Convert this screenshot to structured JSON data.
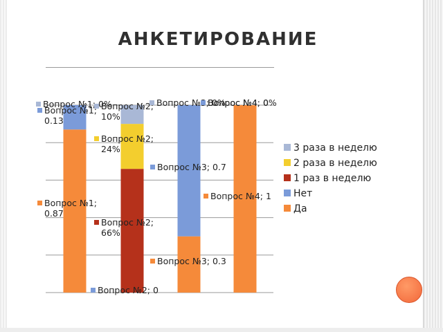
{
  "title": "АНКЕТИРОВАНИЕ",
  "chart_data": {
    "type": "bar",
    "stacked": true,
    "categories": [
      "Вопрос №1",
      "Вопрос №2",
      "Вопрос №3",
      "Вопрос №4"
    ],
    "ylim": [
      0,
      1
    ],
    "grid": true,
    "legend_position": "right",
    "series": [
      {
        "name": "Да",
        "color": "#f58a3a",
        "values": [
          0.87,
          null,
          0.3,
          1
        ]
      },
      {
        "name": "Нет",
        "color": "#7b9bd9",
        "values": [
          0.13,
          0,
          0.7,
          0
        ]
      },
      {
        "name": "1 раз в неделю",
        "color": "#b5311b",
        "values": [
          null,
          0.66,
          null,
          null
        ]
      },
      {
        "name": "2 раза в неделю",
        "color": "#f3ce2e",
        "values": [
          null,
          0.24,
          null,
          null
        ]
      },
      {
        "name": "3 раза в неделю",
        "color": "#a9b8d6",
        "values": [
          0,
          0.1,
          0,
          0
        ]
      }
    ],
    "data_labels": [
      {
        "text": "Вопрос №1; 0%",
        "series": "3 раза в неделю",
        "bar": 0
      },
      {
        "text": "Вопрос №1; 0.13",
        "series": "Нет",
        "bar": 0
      },
      {
        "text": "Вопрос №1; 0.87",
        "series": "Да",
        "bar": 0
      },
      {
        "text": "Вопрос №2; 10%",
        "series": "3 раза в неделю",
        "bar": 1
      },
      {
        "text": "Вопрос №2; 24%",
        "series": "2 раза в неделю",
        "bar": 1
      },
      {
        "text": "Вопрос №2; 66%",
        "series": "1 раз в неделю",
        "bar": 1
      },
      {
        "text": "Вопрос №2; 0",
        "series": "Нет",
        "bar": 1
      },
      {
        "text": "Вопрос №3; 0%",
        "series": "3 раза в неделю",
        "bar": 2
      },
      {
        "text": "Вопрос №3; 0.7",
        "series": "Нет",
        "bar": 2
      },
      {
        "text": "Вопрос №3; 0.3",
        "series": "Да",
        "bar": 2
      },
      {
        "text": "Вопрос №4; 0%",
        "series": "3 раза в неделю",
        "bar": 3
      },
      {
        "text": "Вопрос №4; 0",
        "series": "Нет",
        "bar": 3
      },
      {
        "text": "Вопрос №4; 1",
        "series": "Да",
        "bar": 3
      }
    ],
    "legend": [
      "3 раза в неделю",
      "2 раза в неделю",
      "1 раз в неделю",
      "Нет",
      "Да"
    ]
  }
}
